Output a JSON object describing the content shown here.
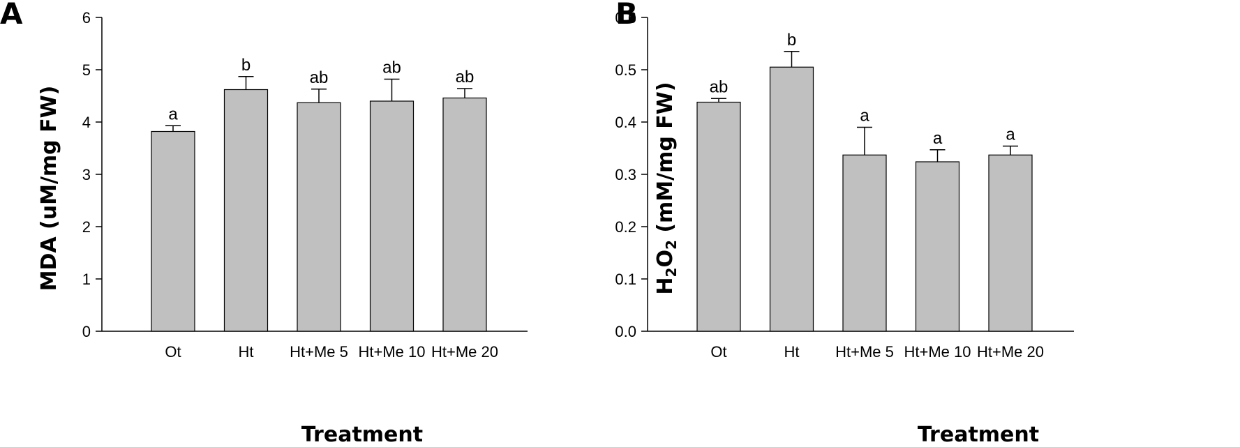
{
  "chart_data": [
    {
      "type": "bar",
      "panel": "A",
      "categories": [
        "Ot",
        "Ht",
        "Ht+Me 5",
        "Ht+Me 10",
        "Ht+Me 20"
      ],
      "values": [
        3.82,
        4.62,
        4.37,
        4.4,
        4.46
      ],
      "errors": [
        0.11,
        0.25,
        0.26,
        0.42,
        0.18
      ],
      "significance": [
        "a",
        "b",
        "ab",
        "ab",
        "ab"
      ],
      "xlabel": "Treatment",
      "ylabel": "MDA (uM/mg FW)",
      "ylim": [
        0,
        6
      ],
      "yticks": [
        "0",
        "1",
        "2",
        "3",
        "4",
        "5",
        "6"
      ],
      "grid": false,
      "bar_color": "#c0c0c0"
    },
    {
      "type": "bar",
      "panel": "B",
      "categories": [
        "Ot",
        "Ht",
        "Ht+Me 5",
        "Ht+Me 10",
        "Ht+Me 20"
      ],
      "values": [
        0.438,
        0.505,
        0.337,
        0.324,
        0.337
      ],
      "errors": [
        0.007,
        0.03,
        0.053,
        0.023,
        0.017
      ],
      "significance": [
        "ab",
        "b",
        "a",
        "a",
        "a"
      ],
      "xlabel": "Treatment",
      "ylabel": "H2O2 (mM/mg FW)",
      "ylabel_parts": [
        "H",
        "2",
        "O",
        "2",
        " (mM/mg FW)"
      ],
      "ylim": [
        0,
        0.6
      ],
      "yticks": [
        "0.0",
        "0.1",
        "0.2",
        "0.3",
        "0.4",
        "0.5",
        "0.6"
      ],
      "grid": false,
      "bar_color": "#c0c0c0"
    }
  ]
}
